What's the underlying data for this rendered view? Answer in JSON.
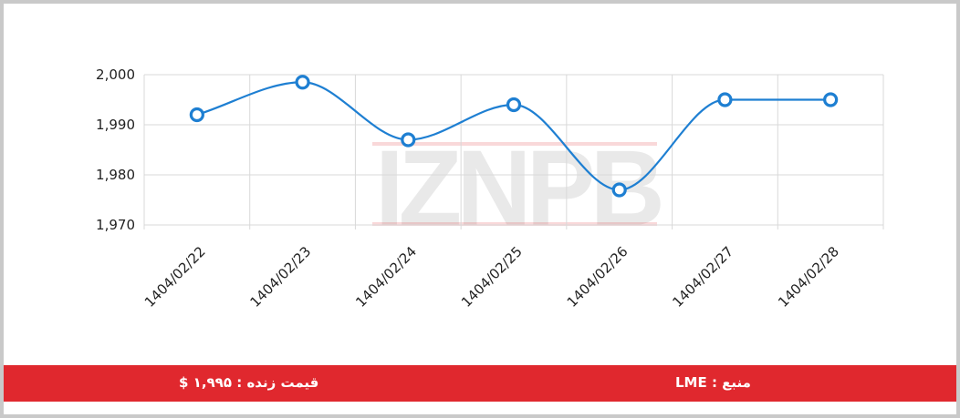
{
  "watermark": "IZNPB",
  "footer": {
    "price_text": "قیمت زنده : ۱,۹۹۵ $",
    "source_text": "منبع : LME",
    "background": "#e0282e"
  },
  "chart_data": {
    "type": "line",
    "categories": [
      "1404/02/22",
      "1404/02/23",
      "1404/02/24",
      "1404/02/25",
      "1404/02/26",
      "1404/02/27",
      "1404/02/28"
    ],
    "series": [
      {
        "values": [
          1992,
          1998.5,
          1987,
          1994,
          1977,
          1995,
          1995
        ],
        "color": "#1e7fd2"
      }
    ],
    "yticks": [
      1970,
      1980,
      1990,
      2000
    ],
    "ytick_labels": [
      "1,970",
      "1,980",
      "1,990",
      "2,000"
    ],
    "ylim": [
      1970,
      2000
    ],
    "grid": true,
    "smooth": true,
    "title": "",
    "xlabel": "",
    "ylabel": ""
  }
}
